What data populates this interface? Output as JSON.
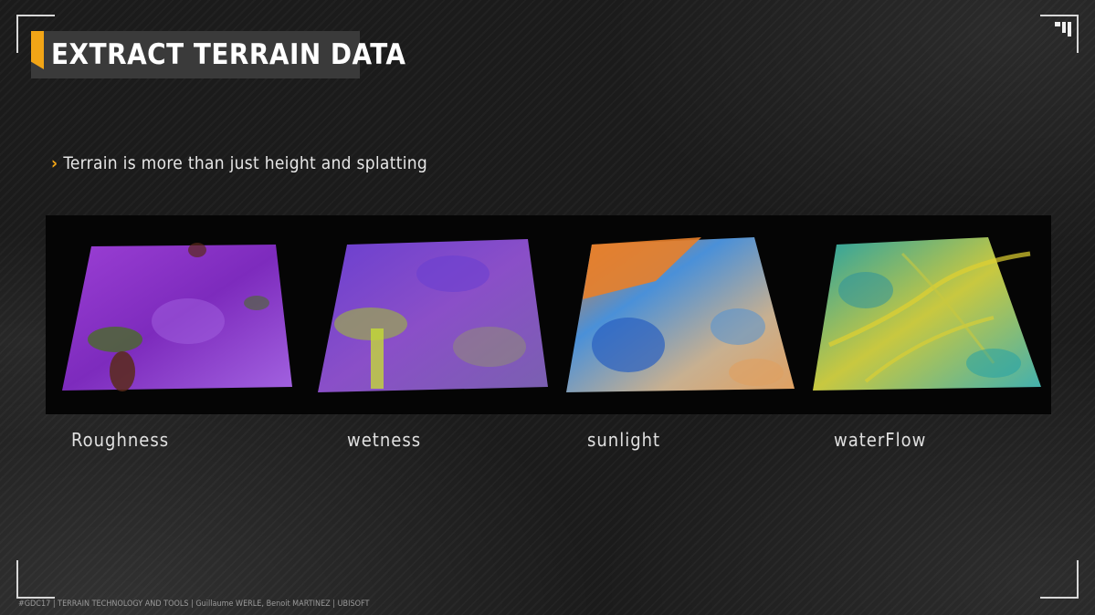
{
  "slide": {
    "title": "EXTRACT TERRAIN DATA",
    "bullet": "Terrain is more than just height and splatting",
    "footer": "#GDC17 | TERRAIN TECHNOLOGY AND TOOLS | Guillaume WERLE, Benoit MARTINEZ | UBISOFT",
    "accent_color": "#f2a516"
  },
  "terrains": [
    {
      "caption": "Roughness",
      "colors": [
        "#9b3fd4",
        "#7d2bbd",
        "#a262e0",
        "#4a6a2a",
        "#5b2a1a"
      ]
    },
    {
      "caption": "wetness",
      "colors": [
        "#6a3fd0",
        "#8a4fc8",
        "#9aa850",
        "#c8e030",
        "#7a60b0"
      ]
    },
    {
      "caption": "sunlight",
      "colors": [
        "#e8802a",
        "#4a90d8",
        "#2a60c0",
        "#c8b090",
        "#e0a060"
      ]
    },
    {
      "caption": "waterFlow",
      "colors": [
        "#20a0a8",
        "#c8c840",
        "#40b0b0",
        "#e0d030",
        "#2890a0"
      ]
    }
  ]
}
